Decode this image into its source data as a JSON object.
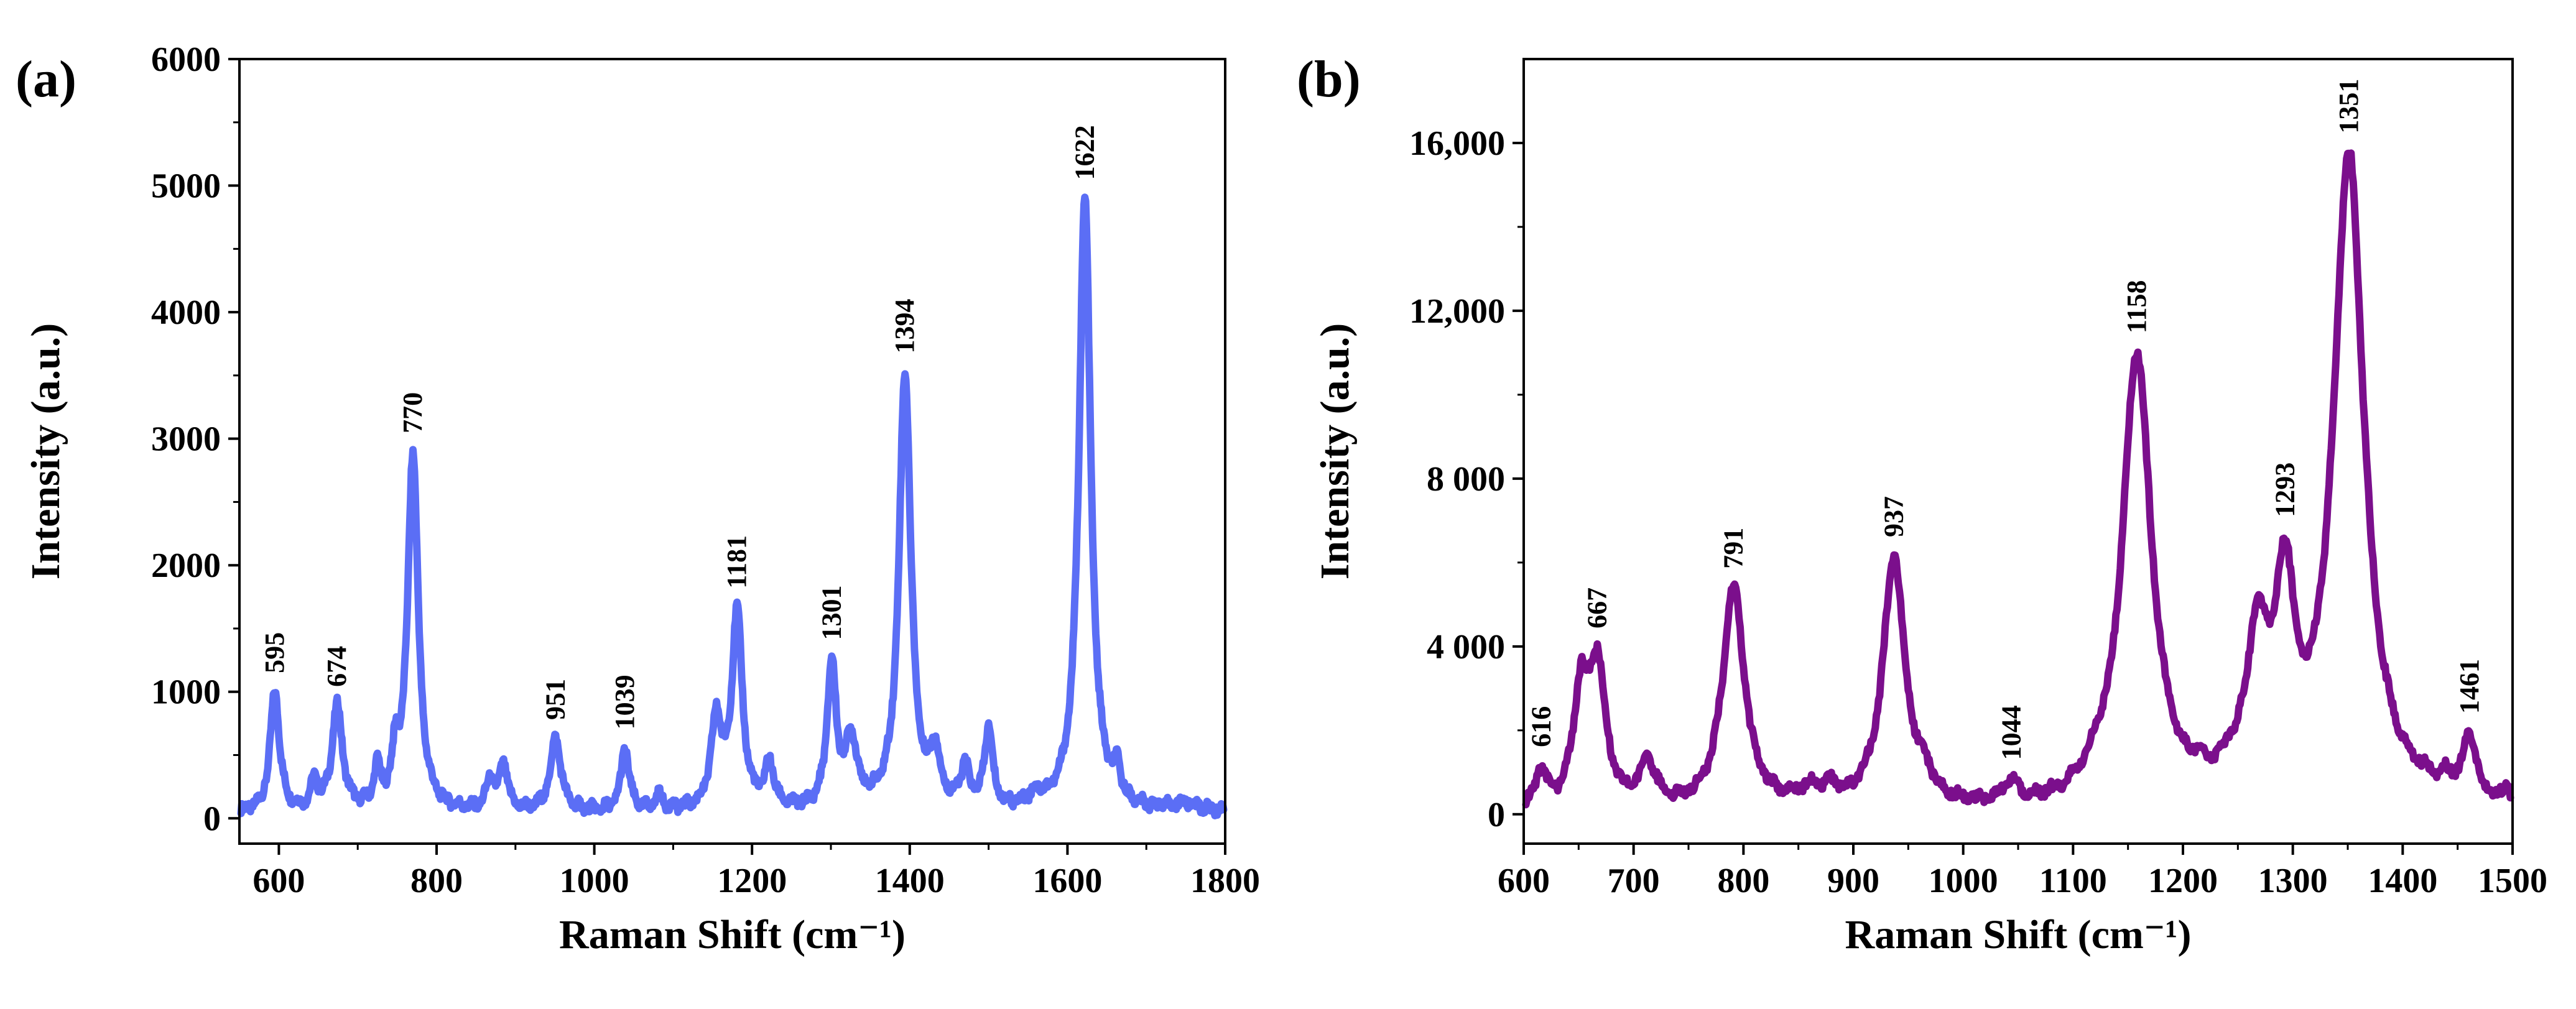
{
  "chart_data": [
    {
      "type": "line",
      "panel_label": "(a)",
      "xlabel": "Raman Shift (cm⁻¹)",
      "ylabel": "Intensity (a.u.)",
      "xlim": [
        550,
        1800
      ],
      "ylim": [
        -200,
        6000
      ],
      "x_ticks": [
        600,
        800,
        1000,
        1200,
        1400,
        1600,
        1800
      ],
      "y_ticks": [
        0,
        1000,
        2000,
        3000,
        4000,
        5000,
        6000
      ],
      "x_tick_labels": [
        "600",
        "800",
        "1000",
        "1200",
        "1400",
        "1600",
        "1800"
      ],
      "y_tick_labels": [
        "0",
        "1000",
        "2000",
        "3000",
        "4000",
        "5000",
        "6000"
      ],
      "grid": false,
      "line_color": "#5b6ef5",
      "baseline": 40,
      "peaks": [
        {
          "x": 595,
          "y": 950,
          "w": 7,
          "label": "595"
        },
        {
          "x": 645,
          "y": 220,
          "w": 5,
          "label": ""
        },
        {
          "x": 674,
          "y": 820,
          "w": 8,
          "label": "674"
        },
        {
          "x": 725,
          "y": 300,
          "w": 5,
          "label": ""
        },
        {
          "x": 748,
          "y": 380,
          "w": 5,
          "label": ""
        },
        {
          "x": 770,
          "y": 2830,
          "w": 8,
          "label": "770"
        },
        {
          "x": 868,
          "y": 230,
          "w": 6,
          "label": ""
        },
        {
          "x": 885,
          "y": 360,
          "w": 6,
          "label": ""
        },
        {
          "x": 951,
          "y": 580,
          "w": 8,
          "label": "951"
        },
        {
          "x": 1039,
          "y": 500,
          "w": 6,
          "label": "1039"
        },
        {
          "x": 1082,
          "y": 110,
          "w": 6,
          "label": ""
        },
        {
          "x": 1155,
          "y": 700,
          "w": 8,
          "label": ""
        },
        {
          "x": 1181,
          "y": 1550,
          "w": 8,
          "label": "1181"
        },
        {
          "x": 1222,
          "y": 340,
          "w": 7,
          "label": ""
        },
        {
          "x": 1301,
          "y": 1120,
          "w": 7,
          "label": "1301"
        },
        {
          "x": 1326,
          "y": 520,
          "w": 9,
          "label": ""
        },
        {
          "x": 1394,
          "y": 3450,
          "w": 9,
          "label": "1394"
        },
        {
          "x": 1432,
          "y": 420,
          "w": 7,
          "label": ""
        },
        {
          "x": 1470,
          "y": 300,
          "w": 7,
          "label": ""
        },
        {
          "x": 1500,
          "y": 630,
          "w": 6,
          "label": ""
        },
        {
          "x": 1560,
          "y": 90,
          "w": 10,
          "label": ""
        },
        {
          "x": 1622,
          "y": 4850,
          "w": 9,
          "label": "1622"
        },
        {
          "x": 1663,
          "y": 230,
          "w": 5,
          "label": ""
        },
        {
          "x": 1750,
          "y": 60,
          "w": 20,
          "label": ""
        }
      ]
    },
    {
      "type": "line",
      "panel_label": "(b)",
      "xlabel": "Raman Shift (cm⁻¹)",
      "ylabel": "Intensity (a.u.)",
      "xlim": [
        600,
        1500
      ],
      "ylim": [
        -700,
        18000
      ],
      "x_ticks": [
        600,
        700,
        800,
        900,
        1000,
        1100,
        1200,
        1300,
        1400,
        1500
      ],
      "y_ticks": [
        0,
        4000,
        8000,
        12000,
        16000
      ],
      "x_tick_labels": [
        "600",
        "700",
        "800",
        "900",
        "1000",
        "1100",
        "1200",
        "1300",
        "1400",
        "1500"
      ],
      "y_tick_labels": [
        "0",
        "4 000",
        "8 000",
        "12,000",
        "16,000"
      ],
      "grid": false,
      "line_color": "#7b0f8c",
      "baseline": 0,
      "peaks": [
        {
          "x": 616,
          "y": 900,
          "w": 6,
          "label": "616"
        },
        {
          "x": 652,
          "y": 2600,
          "w": 8,
          "label": ""
        },
        {
          "x": 667,
          "y": 3300,
          "w": 9,
          "label": "667"
        },
        {
          "x": 713,
          "y": 1050,
          "w": 9,
          "label": ""
        },
        {
          "x": 791,
          "y": 5300,
          "w": 12,
          "label": "791"
        },
        {
          "x": 860,
          "y": 350,
          "w": 14,
          "label": ""
        },
        {
          "x": 880,
          "y": 300,
          "w": 8,
          "label": ""
        },
        {
          "x": 937,
          "y": 6000,
          "w": 12,
          "label": "937"
        },
        {
          "x": 965,
          "y": 450,
          "w": 8,
          "label": ""
        },
        {
          "x": 1044,
          "y": 500,
          "w": 8,
          "label": "1044"
        },
        {
          "x": 1120,
          "y": 280,
          "w": 10,
          "label": ""
        },
        {
          "x": 1158,
          "y": 10800,
          "w": 16,
          "label": "1158"
        },
        {
          "x": 1215,
          "y": 250,
          "w": 7,
          "label": ""
        },
        {
          "x": 1240,
          "y": 250,
          "w": 8,
          "label": ""
        },
        {
          "x": 1268,
          "y": 3600,
          "w": 13,
          "label": ""
        },
        {
          "x": 1293,
          "y": 4500,
          "w": 10,
          "label": "1293"
        },
        {
          "x": 1351,
          "y": 15500,
          "w": 17,
          "label": "1351"
        },
        {
          "x": 1420,
          "y": 120,
          "w": 10,
          "label": ""
        },
        {
          "x": 1440,
          "y": 320,
          "w": 8,
          "label": ""
        },
        {
          "x": 1461,
          "y": 1500,
          "w": 7,
          "label": "1461"
        },
        {
          "x": 1495,
          "y": 350,
          "w": 4,
          "label": ""
        }
      ]
    }
  ]
}
